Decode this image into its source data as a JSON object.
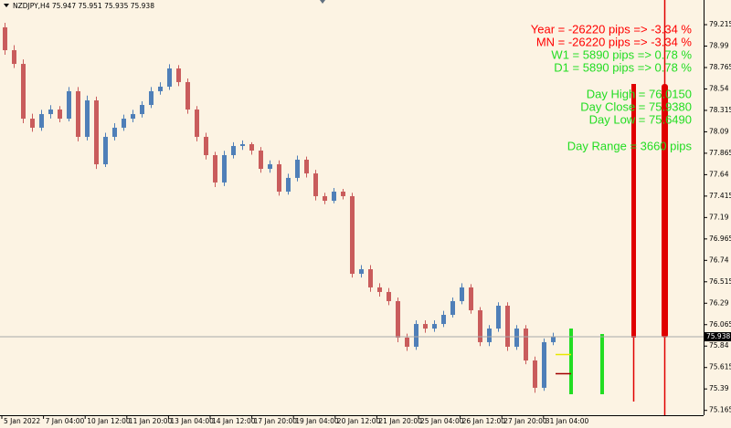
{
  "chart_data": {
    "type": "candlestick",
    "symbol_info": "NZDJPY,H4  75.947 75.951 75.935 75.938",
    "up_color": "#4f7fb8",
    "down_color": "#c95c5c",
    "open": [
      79.187,
      78.947,
      78.803,
      78.228,
      78.133,
      78.276,
      78.324,
      78.228,
      78.516,
      78.037,
      78.42,
      77.749,
      78.037,
      78.133,
      78.228,
      78.276,
      78.372,
      78.516,
      78.564,
      78.755,
      78.612,
      78.324,
      78.037,
      77.845,
      77.558,
      77.845,
      77.941,
      77.96,
      77.893,
      77.701,
      77.749,
      77.462,
      77.606,
      77.797,
      77.653,
      77.414,
      77.366,
      77.462,
      77.414,
      76.599,
      76.647,
      76.456,
      76.408,
      76.312,
      75.929,
      75.833,
      76.072,
      76.024,
      76.072,
      76.168,
      76.312,
      76.456,
      76.216,
      75.881,
      76.024,
      76.264,
      75.833,
      76.024,
      75.689,
      75.402,
      75.881
    ],
    "close": [
      78.947,
      78.803,
      78.228,
      78.133,
      78.276,
      78.324,
      78.228,
      78.516,
      78.037,
      78.42,
      77.749,
      78.037,
      78.133,
      78.228,
      78.276,
      78.372,
      78.516,
      78.564,
      78.755,
      78.612,
      78.324,
      78.037,
      77.845,
      77.558,
      77.845,
      77.941,
      77.96,
      77.893,
      77.701,
      77.749,
      77.462,
      77.606,
      77.797,
      77.653,
      77.414,
      77.366,
      77.462,
      77.414,
      76.599,
      76.647,
      76.456,
      76.408,
      76.312,
      75.929,
      75.833,
      76.072,
      76.024,
      76.072,
      76.168,
      76.312,
      76.456,
      76.216,
      75.881,
      76.024,
      76.264,
      75.833,
      76.024,
      75.689,
      75.402,
      75.881,
      75.938
    ],
    "high": [
      79.234,
      79.0,
      78.85,
      78.28,
      78.32,
      78.37,
      78.36,
      78.56,
      78.56,
      78.47,
      78.46,
      78.08,
      78.18,
      78.27,
      78.32,
      78.41,
      78.56,
      78.61,
      78.8,
      78.79,
      78.65,
      78.36,
      78.08,
      77.88,
      77.89,
      77.98,
      78.0,
      77.98,
      77.93,
      77.79,
      77.79,
      77.65,
      77.84,
      77.83,
      77.69,
      77.45,
      77.5,
      77.49,
      77.45,
      76.69,
      76.69,
      76.5,
      76.45,
      76.35,
      75.97,
      76.11,
      76.11,
      76.11,
      76.21,
      76.35,
      76.5,
      76.49,
      76.25,
      76.06,
      76.3,
      76.3,
      76.06,
      76.06,
      75.73,
      75.92,
      75.98
    ],
    "low": [
      78.899,
      78.76,
      78.18,
      78.09,
      78.1,
      78.23,
      78.19,
      78.2,
      77.99,
      78.0,
      77.7,
      77.72,
      78.0,
      78.1,
      78.19,
      78.24,
      78.34,
      78.48,
      78.53,
      78.57,
      78.28,
      77.99,
      77.8,
      77.51,
      77.52,
      77.81,
      77.9,
      77.85,
      77.66,
      77.66,
      77.42,
      77.43,
      77.57,
      77.61,
      77.37,
      77.33,
      77.34,
      77.38,
      76.56,
      76.56,
      76.41,
      76.36,
      76.27,
      75.88,
      75.79,
      75.8,
      75.98,
      75.99,
      76.04,
      76.14,
      76.28,
      76.18,
      75.84,
      75.84,
      75.99,
      75.79,
      75.8,
      75.65,
      75.35,
      75.37,
      75.85
    ],
    "x_labels": [
      "5 Jan 2022",
      "7 Jan 04:00",
      "10 Jan 12:00",
      "11 Jan 20:00",
      "13 Jan 04:00",
      "14 Jan 12:00",
      "17 Jan 20:00",
      "19 Jan 04:00",
      "20 Jan 12:00",
      "21 Jan 20:00",
      "25 Jan 04:00",
      "26 Jan 12:00",
      "27 Jan 20:00",
      "31 Jan 04:00"
    ],
    "ylim": [
      75.114,
      79.474
    ],
    "yticks": [
      79.215,
      78.99,
      78.765,
      78.54,
      78.315,
      78.09,
      77.865,
      77.64,
      77.415,
      77.19,
      76.965,
      76.74,
      76.515,
      76.29,
      76.065,
      75.84,
      75.615,
      75.39,
      75.165
    ],
    "current_price": 75.938,
    "indicator_lines": [
      {
        "text": "Year = -26220 pips => -3.34 %",
        "color": "#ff0000"
      },
      {
        "text": "MN = -26220 pips => -3.34 %",
        "color": "#ff0000"
      },
      {
        "text": "W1 = 5890 pips => 0.78 %",
        "color": "#22dd22"
      },
      {
        "text": "D1 = 5890 pips => 0.78 %",
        "color": "#22dd22"
      },
      {
        "text": "Day High = 76.0150",
        "color": "#22dd22"
      },
      {
        "text": "Day Close = 75.9380",
        "color": "#22dd22"
      },
      {
        "text": "Day Low = 75.6490",
        "color": "#22dd22"
      },
      {
        "text": "Day Range = 3660 pips",
        "color": "#22dd22"
      }
    ]
  }
}
